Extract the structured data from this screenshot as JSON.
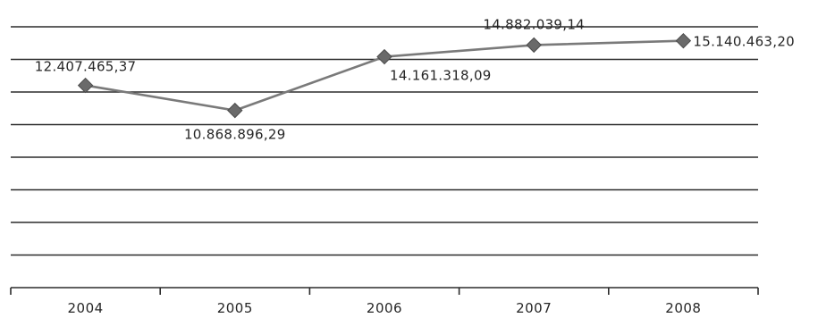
{
  "chart_data": {
    "type": "line",
    "categories": [
      "2004",
      "2005",
      "2006",
      "2007",
      "2008"
    ],
    "series": [
      {
        "values": [
          12407465.37,
          10868896.29,
          14161318.09,
          14882039.14,
          15140463.2
        ],
        "labels": [
          "12.407.465,37",
          "10.868.896,29",
          "14.161.318,09",
          "14.882.039,14",
          "15.140.463,20"
        ]
      }
    ],
    "title": "",
    "xlabel": "",
    "ylabel": "",
    "ylim": [
      0,
      16000000
    ],
    "gridlines": 8,
    "grid": true,
    "legend": "none",
    "colors": {
      "line": "#7a7a7a",
      "marker": "#6a6a6a",
      "grid": "#2b2b2b",
      "text": "#262626"
    }
  }
}
